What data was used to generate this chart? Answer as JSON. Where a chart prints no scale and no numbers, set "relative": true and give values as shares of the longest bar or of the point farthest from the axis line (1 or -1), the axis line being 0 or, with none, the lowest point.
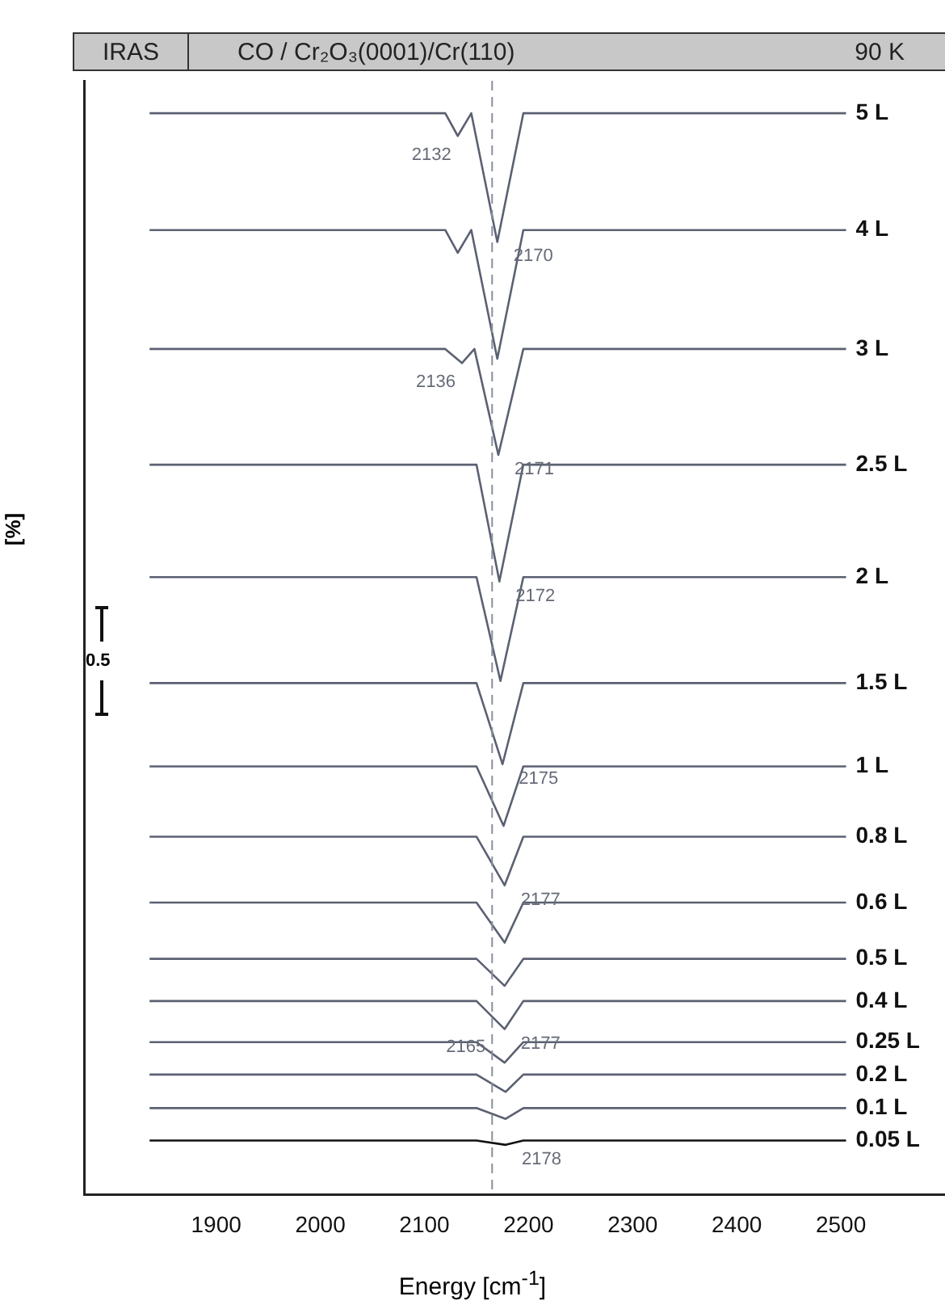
{
  "chart_data": {
    "type": "line",
    "title": "CO / Cr₂O₃(0001)/Cr(110)",
    "xlabel": "Energy [cm$^{-1}$]",
    "ylabel": "[%]",
    "relative": true,
    "marker": "none",
    "line_style": "solid",
    "grid": false,
    "tick_labels": "x",
    "xlim": [
      1773,
      2600
    ],
    "xticks": [
      1900,
      2000,
      2100,
      2200,
      2300,
      2400,
      2500
    ],
    "series": [
      {
        "name": "5 L",
        "color": "#5b6172",
        "x": [
          1836,
          2000,
          2100,
          2120,
          2132,
          2145,
          2170,
          2195,
          2300,
          2400,
          2505
        ],
        "values": [
          1.0,
          1.0,
          1.0,
          1.0,
          0.979,
          1.0,
          0.881,
          1.0,
          1.0,
          1.0,
          1.0
        ]
      },
      {
        "name": "4 L",
        "color": "#5b6172",
        "x": [
          1836,
          2000,
          2100,
          2120,
          2132,
          2145,
          2170,
          2195,
          2300,
          2400,
          2505
        ],
        "values": [
          0.892,
          0.892,
          0.892,
          0.892,
          0.871,
          0.892,
          0.773,
          0.892,
          0.892,
          0.892,
          0.892
        ]
      },
      {
        "name": "3 L",
        "color": "#5b6172",
        "x": [
          1836,
          2000,
          2100,
          2120,
          2136,
          2148,
          2171,
          2195,
          2300,
          2400,
          2505
        ],
        "values": [
          0.782,
          0.782,
          0.782,
          0.782,
          0.769,
          0.782,
          0.684,
          0.782,
          0.782,
          0.782,
          0.782
        ]
      },
      {
        "name": "2.5 L",
        "color": "#5b6172",
        "values": [
          0.675,
          0.675,
          0.675,
          0.675,
          0.567,
          0.675,
          0.675,
          0.675,
          0.675
        ],
        "x": [
          1836,
          2000,
          2100,
          2150,
          2172,
          2195,
          2300,
          2400,
          2505
        ]
      },
      {
        "name": "2 L",
        "color": "#5b6172",
        "x": [
          1836,
          2000,
          2100,
          2150,
          2173,
          2195,
          2300,
          2400,
          2505
        ],
        "values": [
          0.571,
          0.571,
          0.571,
          0.571,
          0.475,
          0.571,
          0.571,
          0.571,
          0.571
        ]
      },
      {
        "name": "1.5 L",
        "color": "#5b6172",
        "x": [
          1836,
          2000,
          2100,
          2150,
          2175,
          2195,
          2300,
          2400,
          2505
        ],
        "values": [
          0.473,
          0.473,
          0.473,
          0.473,
          0.398,
          0.473,
          0.473,
          0.473,
          0.473
        ]
      },
      {
        "name": "1 L",
        "color": "#5b6172",
        "x": [
          1836,
          2000,
          2100,
          2150,
          2176,
          2195,
          2300,
          2400,
          2505
        ],
        "values": [
          0.396,
          0.396,
          0.396,
          0.396,
          0.341,
          0.396,
          0.396,
          0.396,
          0.396
        ]
      },
      {
        "name": "0.8 L",
        "color": "#5b6172",
        "x": [
          1836,
          2000,
          2100,
          2150,
          2177,
          2195,
          2300,
          2400,
          2505
        ],
        "values": [
          0.331,
          0.331,
          0.331,
          0.331,
          0.286,
          0.331,
          0.331,
          0.331,
          0.331
        ]
      },
      {
        "name": "0.6 L",
        "color": "#5b6172",
        "x": [
          1836,
          2000,
          2100,
          2150,
          2177,
          2195,
          2300,
          2400,
          2505
        ],
        "values": [
          0.27,
          0.27,
          0.27,
          0.27,
          0.233,
          0.27,
          0.27,
          0.27,
          0.27
        ]
      },
      {
        "name": "0.5 L",
        "color": "#5b6172",
        "x": [
          1836,
          2000,
          2100,
          2150,
          2177,
          2195,
          2300,
          2400,
          2505
        ],
        "values": [
          0.218,
          0.218,
          0.218,
          0.218,
          0.193,
          0.218,
          0.218,
          0.218,
          0.218
        ]
      },
      {
        "name": "0.4 L",
        "color": "#5b6172",
        "x": [
          1836,
          2000,
          2100,
          2150,
          2177,
          2195,
          2300,
          2400,
          2505
        ],
        "values": [
          0.179,
          0.179,
          0.179,
          0.179,
          0.153,
          0.179,
          0.179,
          0.179,
          0.179
        ]
      },
      {
        "name": "0.25 L",
        "color": "#5b6172",
        "x": [
          1836,
          2000,
          2100,
          2150,
          2177,
          2195,
          2300,
          2400,
          2505
        ],
        "values": [
          0.141,
          0.141,
          0.141,
          0.141,
          0.122,
          0.141,
          0.141,
          0.141,
          0.141
        ]
      },
      {
        "name": "0.2 L",
        "color": "#5b6172",
        "x": [
          1836,
          2000,
          2100,
          2150,
          2178,
          2195,
          2300,
          2400,
          2505
        ],
        "values": [
          0.111,
          0.111,
          0.111,
          0.111,
          0.095,
          0.111,
          0.111,
          0.111,
          0.111
        ]
      },
      {
        "name": "0.1 L",
        "color": "#5b6172",
        "x": [
          1836,
          2000,
          2100,
          2150,
          2178,
          2195,
          2300,
          2400,
          2505
        ],
        "values": [
          0.08,
          0.08,
          0.08,
          0.08,
          0.07,
          0.08,
          0.08,
          0.08,
          0.08
        ]
      },
      {
        "name": "0.05 L",
        "color": "#111111",
        "x": [
          1836,
          2000,
          2100,
          2150,
          2178,
          2195,
          2300,
          2400,
          2505
        ],
        "values": [
          0.05,
          0.05,
          0.05,
          0.05,
          0.046,
          0.05,
          0.05,
          0.05,
          0.05
        ]
      }
    ],
    "ref_lines": [
      {
        "axis": "x",
        "value": 2165,
        "color": "#8a8f9c",
        "line_style": "dashed"
      }
    ],
    "annotations": [
      "IRAS",
      "90 K",
      "0.5",
      {
        "text": "2132",
        "x": 2132,
        "y": 0.979
      },
      {
        "text": "2170",
        "x": 2170,
        "y": 0.881
      },
      {
        "text": "2136",
        "x": 2136,
        "y": 0.769
      },
      {
        "text": "2171",
        "x": 2171,
        "y": 0.684
      },
      {
        "text": "2172",
        "x": 2172,
        "y": 0.567
      },
      {
        "text": "2175",
        "x": 2175,
        "y": 0.398
      },
      {
        "text": "2177",
        "x": 2177,
        "y": 0.286
      },
      {
        "text": "2165",
        "x": 2165,
        "y": 0.154
      },
      {
        "text": "2177",
        "x": 2177,
        "y": 0.153
      },
      {
        "text": "2178",
        "x": 2178,
        "y": 0.046
      }
    ]
  }
}
